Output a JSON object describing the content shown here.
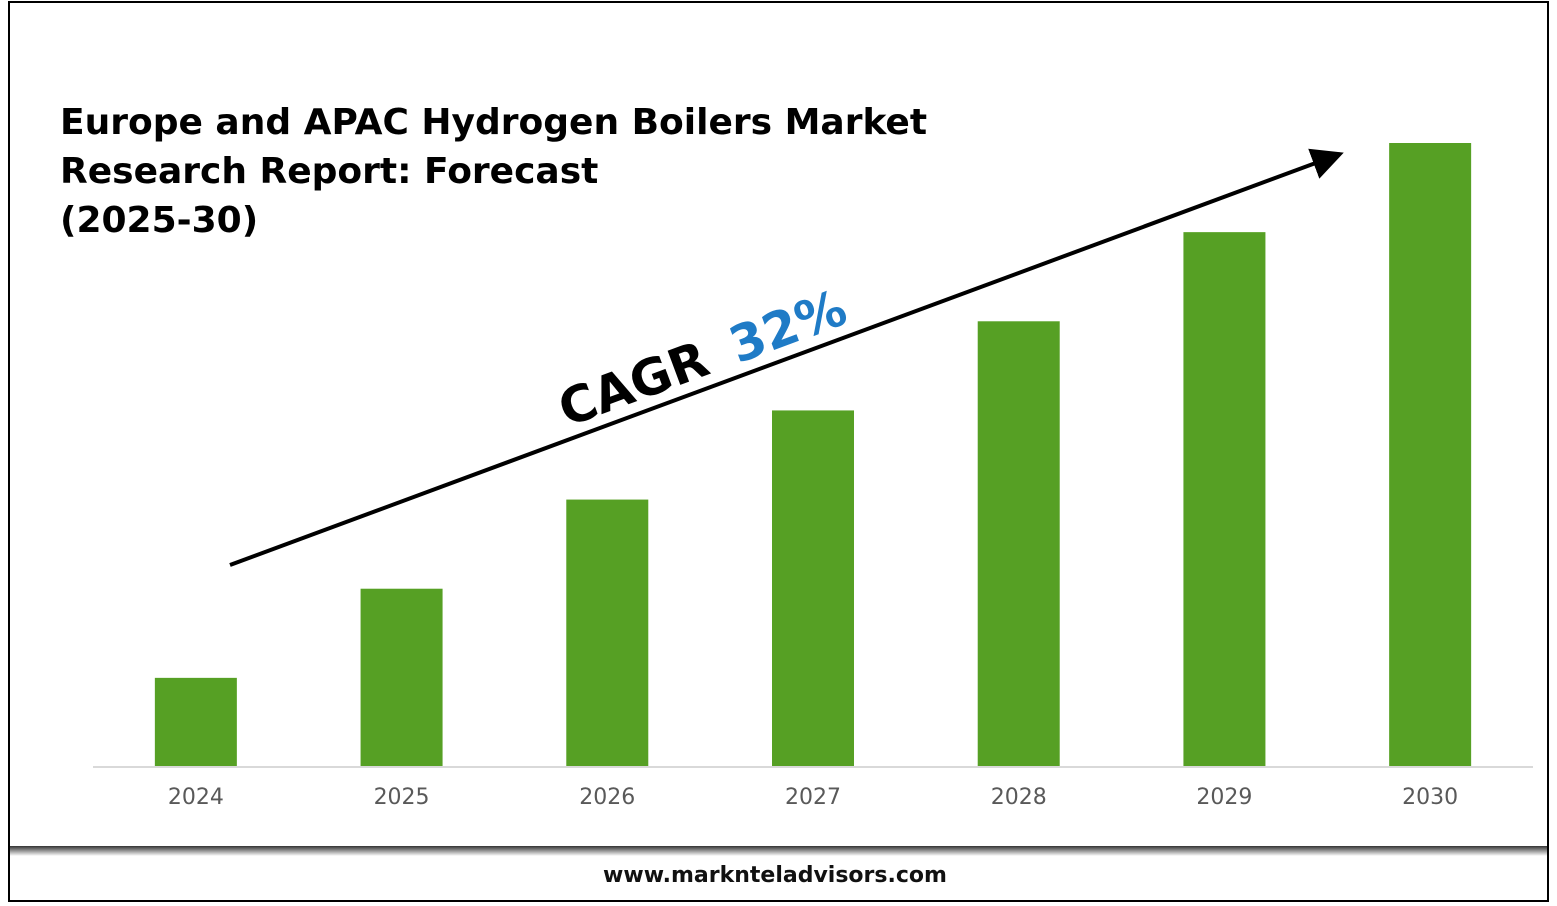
{
  "chart_data": {
    "type": "bar",
    "title": [
      "Europe and APAC Hydrogen Boilers Market",
      "Research Report: Forecast",
      "(2025-30)"
    ],
    "annotation": {
      "label": "CAGR",
      "value": "32%"
    },
    "categories": [
      "2024",
      "2025",
      "2026",
      "2027",
      "2028",
      "2029",
      "2030"
    ],
    "values": [
      1,
      2,
      3,
      4,
      5,
      6,
      7
    ],
    "color": "#56a024",
    "ylim": [
      0,
      7
    ]
  },
  "footer": "www.marknteladvisors.com"
}
